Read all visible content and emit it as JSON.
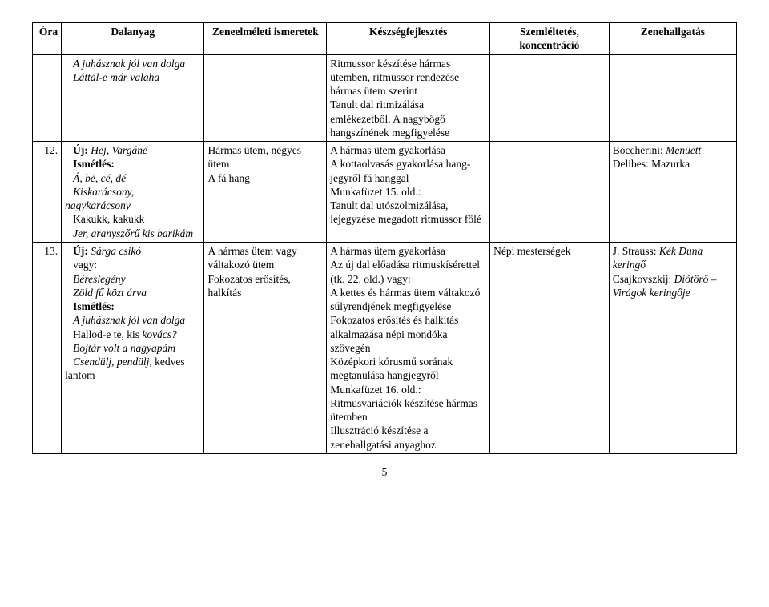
{
  "header": {
    "c0": "Óra",
    "c1": "Dalanyag",
    "c2": "Zeneelméleti ismeretek",
    "c3": "Készségfejlesztés",
    "c4": "Szemléltetés, koncentráció",
    "c5": "Zenehallgatás"
  },
  "rows": [
    {
      "num": "",
      "dal_lines": [
        {
          "t": "A juhásznak jól van dolga",
          "i": true,
          "indent": true
        },
        {
          "t": "Láttál-e már valaha",
          "i": true,
          "indent": true
        }
      ],
      "zene_lines": [],
      "kesz_lines": [
        {
          "t": "Ritmussor készítése hármas ütemben, ritmussor rendezése hármas ütem szerint"
        },
        {
          "t": "Tanult dal ritmizálása emlékezetből. A nagybőgő hangszínének megfigyelése"
        }
      ],
      "szem_lines": [],
      "zh_lines": []
    },
    {
      "num": "12.",
      "dal_lines": [
        {
          "pre": "Új: ",
          "pre_b": true,
          "t": "Hej, Vargáné",
          "i": true,
          "indent": true
        },
        {
          "t": "Ismétlés:",
          "b": true,
          "indent": true
        },
        {
          "t": "Á, bé, cé, dé",
          "i": true,
          "indent": true
        },
        {
          "t": "Kiskarácsony, nagykarácsony",
          "i": true,
          "indent": true
        },
        {
          "t": "Kakukk, kakukk",
          "indent": true
        },
        {
          "t": "Jer, aranyszőrű kis barikám",
          "i": true,
          "indent": true
        }
      ],
      "zene_lines": [
        {
          "t": "Hármas ütem, négyes ütem"
        },
        {
          "t": "A fá hang"
        }
      ],
      "kesz_lines": [
        {
          "t": "A hármas ütem gyakorlása"
        },
        {
          "t": "A kottaolvasás gyakorlása hang­jegyről fá hanggal"
        },
        {
          "t": "Munkafüzet 15. old.:"
        },
        {
          "t": "Tanult dal utószolmizálása, lejegyzése megadott ritmussor fölé"
        }
      ],
      "szem_lines": [],
      "zh_lines": [
        {
          "pre": "Boccherini: ",
          "t": "Menüett",
          "i": true
        },
        {
          "t": "Delibes: Mazurka"
        }
      ]
    },
    {
      "num": "13.",
      "dal_lines": [
        {
          "pre": "Új: ",
          "pre_b": true,
          "t": "Sárga csikó",
          "i": true,
          "indent": true
        },
        {
          "t": "vagy:",
          "indent": true
        },
        {
          "t": "Béreslegény",
          "i": true,
          "indent": true
        },
        {
          "t": "Zöld fű közt árva",
          "i": true,
          "indent": true
        },
        {
          "t": "Ismétlés:",
          "b": true,
          "indent": true
        },
        {
          "t": "A juhásznak jól van dolga",
          "i": true,
          "indent": true
        },
        {
          "pre": "Hallod-e te, kis ",
          "t": "kovács?",
          "i": true,
          "indent": true
        },
        {
          "t": "Bojtár volt a nagyapám",
          "i": true,
          "indent": true
        },
        {
          "pre": "Csendülj, pendülj, ",
          "pre_i": true,
          "t": "kedves lantom",
          "indent": true
        }
      ],
      "zene_lines": [
        {
          "t": "A hármas ütem vagy váltakozó ütem"
        },
        {
          "t": "Fokozatos erősítés, halkítás"
        }
      ],
      "kesz_lines": [
        {
          "t": "A hármas ütem gyakorlása"
        },
        {
          "t": "Az új dal előadása ritmus­kísérettel (tk. 22. old.) vagy:"
        },
        {
          "t": "A kettes és hármas ütem váltakozó súlyrendjének meg­figyelése"
        },
        {
          "t": "Fokozatos erősítés és halkítás alkalmazása népi mondóka szövegén"
        },
        {
          "t": "Középkori kórusmű sorának megtanulása hangjegyről"
        },
        {
          "t": "Munkafüzet 16. old.:"
        },
        {
          "t": "Ritmusvariációk készítése hármas ütemben"
        },
        {
          "t": "Illusztráció készítése a zenehallgatási anyaghoz"
        }
      ],
      "szem_lines": [
        {
          "t": "Népi mesterségek"
        }
      ],
      "zh_lines": [
        {
          "pre": "J. Strauss: ",
          "t": "Kék Duna keringő",
          "i": true
        },
        {
          "pre": "Csajkovszkij: ",
          "t": "Diótörő – Virágok keringője",
          "i": true
        }
      ]
    }
  ],
  "page_number": "5"
}
